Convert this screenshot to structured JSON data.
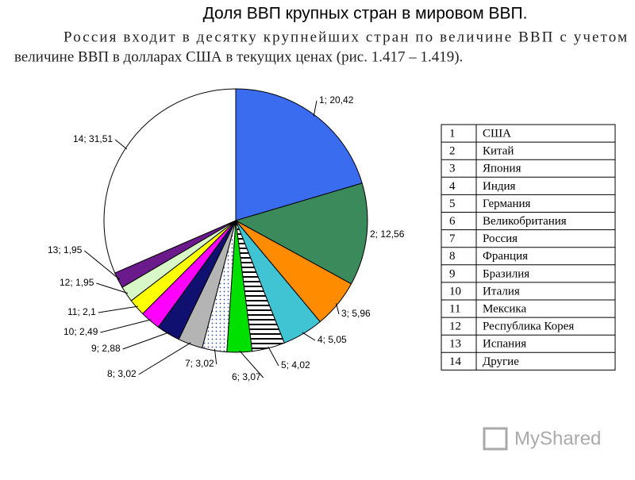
{
  "title": "Доля ВВП крупных стран в мировом ВВП.",
  "text": [
    "Россия входит в десятку крупнейших стран по величине ВВП с учетом",
    "величине ВВП в долларах США в текущих ценах (рис. 1.417 – 1.419)."
  ],
  "chart_data": {
    "type": "pie",
    "values": [
      20.42,
      12.56,
      5.96,
      5.05,
      4.02,
      3.07,
      3.02,
      3.02,
      2.88,
      2.49,
      2.1,
      1.95,
      1.95,
      31.51
    ],
    "value_labels": [
      "1; 20,42",
      "2; 12,56",
      "3; 5,96",
      "4; 5,05",
      "5; 4,02",
      "6; 3,07",
      "7; 3,02",
      "8; 3,02",
      "9; 2,88",
      "10; 2,49",
      "11; 2,1",
      "12; 1,95",
      "13; 1,95",
      "14; 31,51"
    ],
    "colors": [
      "#3a6cf0",
      "#3a8a5c",
      "#ff8c00",
      "#40c4d4",
      "url(#stripes)",
      "#00e000",
      "url(#dots)",
      "#b4b4b4",
      "#101070",
      "#ff00ff",
      "#ffff00",
      "#d8f8c8",
      "#6a1a8a",
      "#ffffff"
    ]
  },
  "table": {
    "rows": [
      [
        "1",
        "США"
      ],
      [
        "2",
        "Китай"
      ],
      [
        "3",
        "Япония"
      ],
      [
        "4",
        "Индия"
      ],
      [
        "5",
        "Германия"
      ],
      [
        "6",
        "Великобритания"
      ],
      [
        "7",
        "Россия"
      ],
      [
        "8",
        "Франция"
      ],
      [
        "9",
        "Бразилия"
      ],
      [
        "10",
        "Италия"
      ],
      [
        "11",
        "Мексика"
      ],
      [
        "12",
        "Республика Корея"
      ],
      [
        "13",
        "Испания"
      ],
      [
        "14",
        "Другие"
      ]
    ]
  },
  "watermark": "MyShared"
}
